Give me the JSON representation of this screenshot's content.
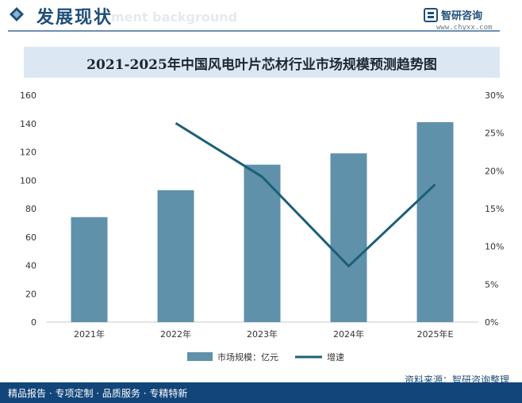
{
  "header": {
    "title": "发展现状",
    "watermark": "ment background",
    "brand_name": "智研咨询",
    "brand_url": "www.chyxx.com"
  },
  "chart_data": {
    "type": "bar",
    "title": "2021-2025年中国风电叶片芯材行业市场规模预测趋势图",
    "categories": [
      "2021年",
      "2022年",
      "2023年",
      "2024年",
      "2025年E"
    ],
    "series": [
      {
        "name": "市场规模：亿元",
        "type": "bar",
        "axis": "left",
        "values": [
          74,
          93,
          111,
          119,
          141
        ]
      },
      {
        "name": "增速",
        "type": "line",
        "axis": "right",
        "values": [
          null,
          26.3,
          19.2,
          7.4,
          18.2
        ]
      }
    ],
    "left_axis": {
      "ticks": [
        "0",
        "20",
        "40",
        "60",
        "80",
        "100",
        "120",
        "140",
        "160"
      ],
      "ylim": [
        0,
        160
      ]
    },
    "right_axis": {
      "ticks": [
        "0%",
        "5%",
        "10%",
        "15%",
        "20%",
        "25%",
        "30%"
      ],
      "ylim": [
        0,
        30
      ]
    },
    "legend_position": "bottom",
    "grid": false,
    "colors": {
      "bar": "#5f91aa",
      "line": "#1c5f78"
    }
  },
  "source": "资料来源：智研咨询整理",
  "footer": "精品报告 · 专项定制 · 品质服务 · 专精特新"
}
